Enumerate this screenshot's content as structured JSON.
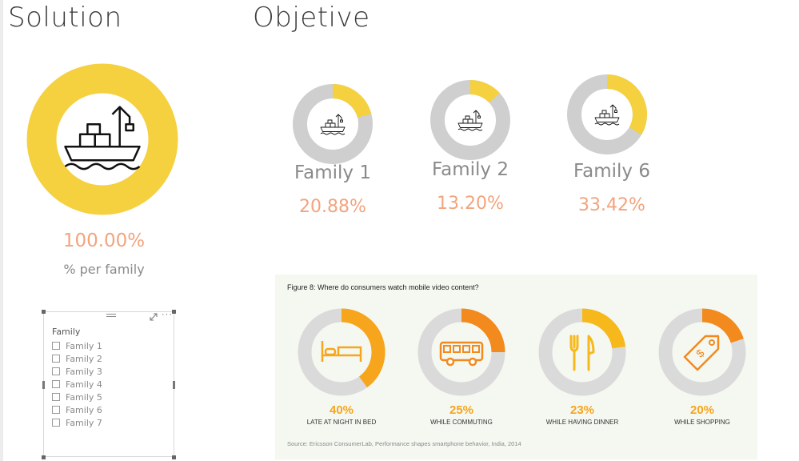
{
  "headings": {
    "solution": "Solution",
    "objective": "Objetive"
  },
  "colors": {
    "yellow": "#f5d03f",
    "grey": "#cfcfcf",
    "orange_text": "#f2a47e",
    "fig_orange": "#f7a51c",
    "fig_dark_orange": "#f28a1e",
    "fig_grey": "#dadada"
  },
  "solution": {
    "percent": "100.00%",
    "fraction": 1.0,
    "subtitle": "% per family",
    "icon": "cargo-ship-icon"
  },
  "families": [
    {
      "label": "Family 1",
      "percent": "20.88%",
      "fraction": 0.2088,
      "icon": "cargo-ship-icon"
    },
    {
      "label": "Family 2",
      "percent": "13.20%",
      "fraction": 0.132,
      "icon": "cargo-ship-icon"
    },
    {
      "label": "Family 6",
      "percent": "33.42%",
      "fraction": 0.3342,
      "icon": "cargo-ship-icon"
    }
  ],
  "slicer": {
    "header": "Family",
    "items": [
      "Family 1",
      "Family 2",
      "Family 3",
      "Family 4",
      "Family 5",
      "Family 6",
      "Family 7"
    ]
  },
  "figure": {
    "title": "Figure 8: Where do consumers watch mobile video content?",
    "source": "Source: Ericsson ConsumerLab, Performance shapes smartphone behavior, India, 2014",
    "items": [
      {
        "percent": "40%",
        "fraction": 0.4,
        "caption": "LATE AT NIGHT IN BED",
        "icon": "bed-icon",
        "color": "#f7a51c"
      },
      {
        "percent": "25%",
        "fraction": 0.25,
        "caption": "WHILE COMMUTING",
        "icon": "bus-icon",
        "color": "#f28a1e"
      },
      {
        "percent": "23%",
        "fraction": 0.23,
        "caption": "WHILE HAVING DINNER",
        "icon": "fork-knife-icon",
        "color": "#f7b81c"
      },
      {
        "percent": "20%",
        "fraction": 0.2,
        "caption": "WHILE SHOPPING",
        "icon": "price-tag-icon",
        "color": "#f28a1e"
      }
    ]
  }
}
